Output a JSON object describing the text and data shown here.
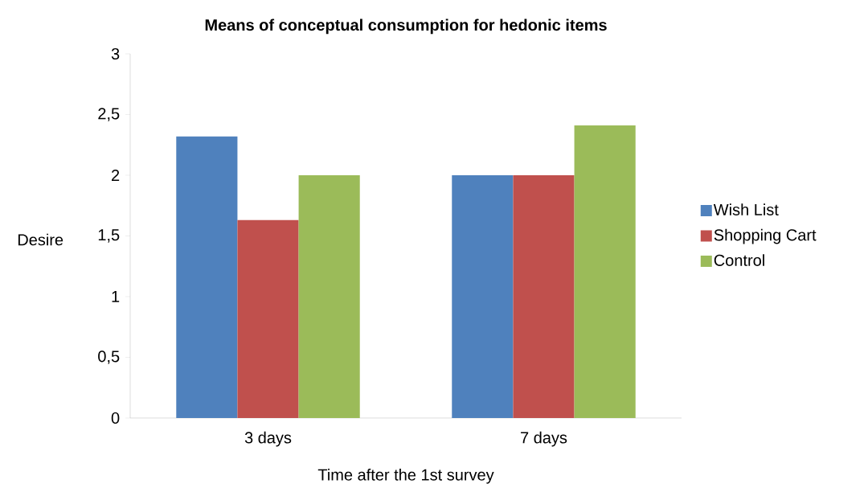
{
  "chart_data": {
    "type": "bar",
    "title": "Means of conceptual consumption for hedonic items",
    "xlabel": "Time after the 1st survey",
    "ylabel": "Desire",
    "categories": [
      "3 days",
      "7 days"
    ],
    "series": [
      {
        "name": "Wish List",
        "color": "#4f81bd",
        "values": [
          2.32,
          2.0
        ]
      },
      {
        "name": "Shopping Cart",
        "color": "#c0504d",
        "values": [
          1.63,
          2.0
        ]
      },
      {
        "name": "Control",
        "color": "#9bbb59",
        "values": [
          2.0,
          2.41
        ]
      }
    ],
    "ylim": [
      0,
      3
    ],
    "yticks": [
      0,
      {
        "value": 0.5,
        "label": "0,5"
      },
      1,
      {
        "value": 1.5,
        "label": "1,5"
      },
      2,
      {
        "value": 2.5,
        "label": "2,5"
      },
      3
    ],
    "legend": "right"
  }
}
